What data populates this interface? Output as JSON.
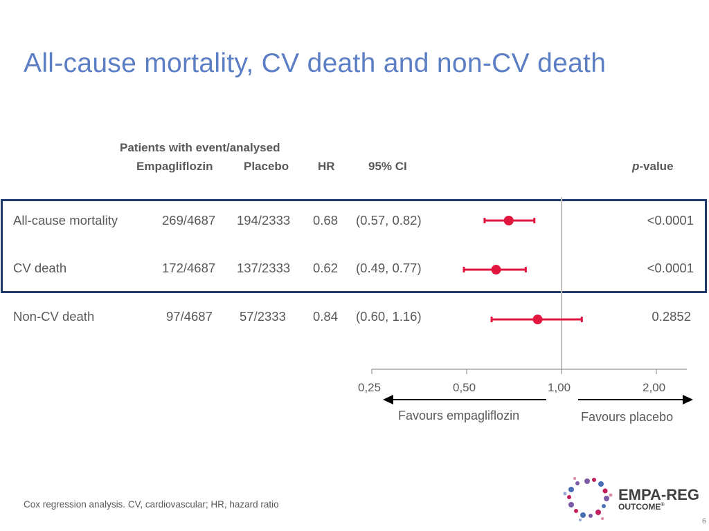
{
  "title": "All-cause mortality, CV death and non-CV death",
  "headers": {
    "group": "Patients with event/analysed",
    "empagliflozin": "Empagliflozin",
    "placebo": "Placebo",
    "hr": "HR",
    "ci": "95% CI",
    "p_prefix": "p",
    "p_suffix": "-value"
  },
  "rows": [
    {
      "label": "All-cause mortality",
      "empa": "269/4687",
      "placebo": "194/2333",
      "hr": "0.68",
      "ci": "(0.57, 0.82)",
      "p": "<0.0001"
    },
    {
      "label": "CV death",
      "empa": "172/4687",
      "placebo": "137/2333",
      "hr": "0.62",
      "ci": "(0.49, 0.77)",
      "p": "<0.0001"
    },
    {
      "label": "Non-CV death",
      "empa": "97/4687",
      "placebo": "57/2333",
      "hr": "0.84",
      "ci": "(0.60, 1.16)",
      "p": "0.2852"
    }
  ],
  "axis": {
    "ticks": [
      "0,25",
      "0,50",
      "1,00",
      "2,00"
    ],
    "favours_left": "Favours empagliflozin",
    "favours_right": "Favours placebo"
  },
  "chart_data": {
    "type": "scatter",
    "subtype": "forest-plot",
    "scale": "log2",
    "xlim": [
      0.25,
      2.5
    ],
    "reference_line": 1.0,
    "tick_values": [
      0.25,
      0.5,
      1.0,
      2.0
    ],
    "series": [
      {
        "name": "All-cause mortality",
        "hr": 0.68,
        "ci": [
          0.57,
          0.82
        ]
      },
      {
        "name": "CV death",
        "hr": 0.62,
        "ci": [
          0.49,
          0.77
        ]
      },
      {
        "name": "Non-CV death",
        "hr": 0.84,
        "ci": [
          0.6,
          1.16
        ]
      }
    ],
    "marker_color": "#e0163e",
    "ref_line_color": "#bfbfbf"
  },
  "footnote": "Cox regression analysis. CV, cardiovascular; HR, hazard ratio",
  "logo": {
    "line1": "EMPA-REG",
    "line2": "OUTCOME",
    "mark": "®"
  },
  "page_number": "6"
}
